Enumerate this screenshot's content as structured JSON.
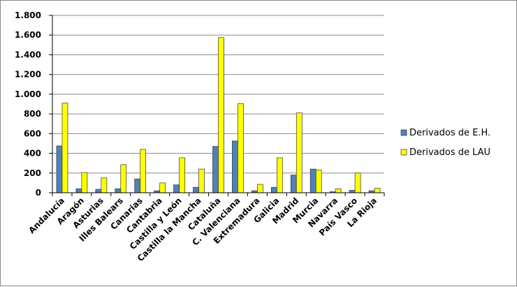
{
  "chart_data": {
    "type": "bar",
    "categories": [
      "Andalucía",
      "Aragón",
      "Asturias",
      "Illes Balears",
      "Canarias",
      "Cantabria",
      "Castilla y León",
      "Castilla la Mancha",
      "Cataluña",
      "C. Valenciana",
      "Extremadura",
      "Galicia",
      "Madrid",
      "Murcia",
      "Navarra",
      "País Vasco",
      "La Rioja"
    ],
    "series": [
      {
        "name": "Derivados de E.H.",
        "color": "#4f81bd",
        "values": [
          475,
          40,
          35,
          40,
          140,
          20,
          80,
          55,
          470,
          525,
          20,
          55,
          180,
          240,
          10,
          25,
          20
        ]
      },
      {
        "name": "Derivados de LAU",
        "color": "#ffff00",
        "values": [
          910,
          205,
          150,
          285,
          440,
          100,
          355,
          240,
          1575,
          905,
          85,
          355,
          810,
          230,
          40,
          200,
          45
        ]
      }
    ],
    "ylim": [
      0,
      1800
    ],
    "yticks": [
      0,
      200,
      400,
      600,
      800,
      {
        "value": 1000,
        "label": "1.000"
      },
      {
        "value": 1200,
        "label": "1.200"
      },
      {
        "value": 1400,
        "label": "1.400"
      },
      {
        "value": 1600,
        "label": "1.600"
      },
      {
        "value": 1800,
        "label": "1.800"
      }
    ],
    "grid": true,
    "legend": "right"
  }
}
